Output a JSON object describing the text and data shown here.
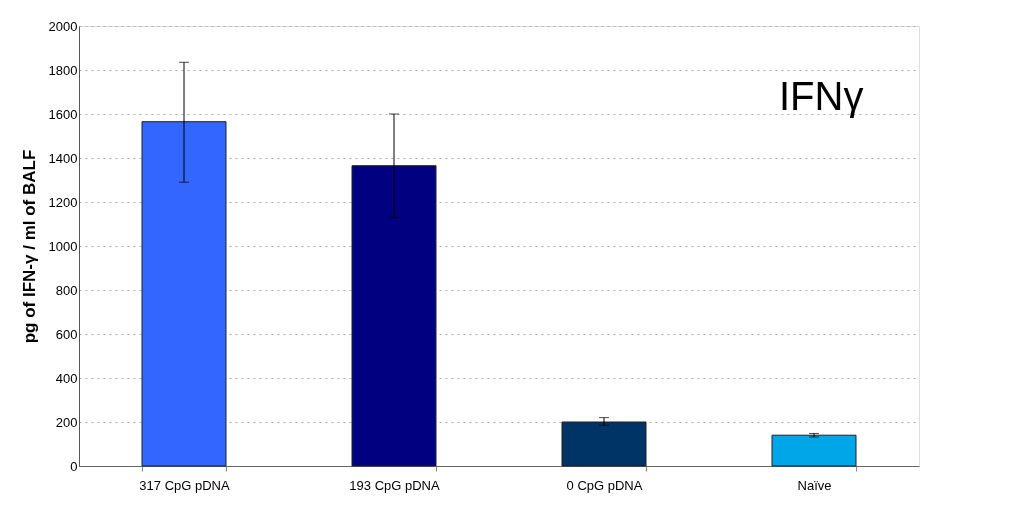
{
  "chart_data": {
    "type": "bar",
    "ylabel": "pg of IFN-γ / ml of BALF",
    "categories": [
      "317 CpG pDNA",
      "193 CpG pDNA",
      "0 CpG pDNA",
      "Naïve"
    ],
    "values": [
      1565,
      1365,
      200,
      140
    ],
    "colors": [
      "#3366ff",
      "#000080",
      "#003366",
      "#00a6e8"
    ],
    "errors": [
      [
        1290,
        1835
      ],
      [
        1130,
        1600
      ],
      [
        185,
        220
      ],
      [
        132,
        148
      ]
    ],
    "ylim": [
      0,
      2000
    ],
    "yticks": [
      0,
      200,
      400,
      600,
      800,
      1000,
      1200,
      1400,
      1600,
      1800,
      2000
    ],
    "grid": "y",
    "annotations": [
      "IFNγ"
    ]
  }
}
